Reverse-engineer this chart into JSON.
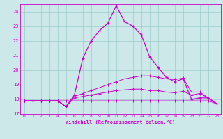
{
  "xlabel": "Windchill (Refroidissement éolien,°C)",
  "xlim": [
    -0.5,
    23.5
  ],
  "ylim": [
    17,
    24.5
  ],
  "yticks": [
    17,
    18,
    19,
    20,
    21,
    22,
    23,
    24
  ],
  "xticks": [
    0,
    1,
    2,
    3,
    4,
    5,
    6,
    7,
    8,
    9,
    10,
    11,
    12,
    13,
    14,
    15,
    16,
    17,
    18,
    19,
    20,
    21,
    22,
    23
  ],
  "bg_color": "#cce8e8",
  "grid_color": "#99cccc",
  "line_color": "#cc00cc",
  "line1": {
    "x": [
      0,
      1,
      2,
      3,
      4,
      5,
      6,
      7,
      8,
      9,
      10,
      11,
      12,
      13,
      14,
      15,
      16,
      17,
      18,
      19,
      20,
      21,
      22,
      23
    ],
    "y": [
      17.9,
      17.9,
      17.9,
      17.9,
      17.9,
      17.5,
      18.3,
      20.8,
      22.0,
      22.7,
      23.2,
      24.4,
      23.3,
      23.0,
      22.4,
      20.9,
      20.2,
      19.5,
      19.2,
      19.4,
      18.0,
      18.1,
      18.1,
      17.7
    ]
  },
  "line2": {
    "x": [
      0,
      1,
      2,
      3,
      4,
      5,
      6,
      7,
      8,
      9,
      10,
      11,
      12,
      13,
      14,
      15,
      16,
      17,
      18,
      19,
      20,
      21,
      22,
      23
    ],
    "y": [
      17.9,
      17.9,
      17.9,
      17.9,
      17.9,
      17.5,
      18.2,
      18.4,
      18.6,
      18.8,
      19.0,
      19.2,
      19.4,
      19.5,
      19.6,
      19.6,
      19.5,
      19.4,
      19.35,
      19.45,
      18.5,
      18.5,
      18.1,
      17.7
    ]
  },
  "line3": {
    "x": [
      0,
      1,
      2,
      3,
      4,
      5,
      6,
      7,
      8,
      9,
      10,
      11,
      12,
      13,
      14,
      15,
      16,
      17,
      18,
      19,
      20,
      21,
      22,
      23
    ],
    "y": [
      17.9,
      17.9,
      17.9,
      17.9,
      17.9,
      17.5,
      18.1,
      18.2,
      18.3,
      18.4,
      18.5,
      18.6,
      18.65,
      18.7,
      18.7,
      18.6,
      18.6,
      18.5,
      18.45,
      18.55,
      18.3,
      18.4,
      18.1,
      17.7
    ]
  },
  "line4": {
    "x": [
      0,
      1,
      2,
      3,
      4,
      5,
      6,
      7,
      8,
      9,
      10,
      11,
      12,
      13,
      14,
      15,
      16,
      17,
      18,
      19,
      20,
      21,
      22,
      23
    ],
    "y": [
      17.9,
      17.9,
      17.9,
      17.9,
      17.9,
      17.9,
      17.9,
      17.9,
      17.9,
      17.9,
      17.9,
      17.9,
      17.9,
      17.9,
      17.9,
      17.9,
      17.9,
      17.9,
      17.9,
      17.9,
      17.9,
      17.9,
      17.9,
      17.7
    ]
  }
}
